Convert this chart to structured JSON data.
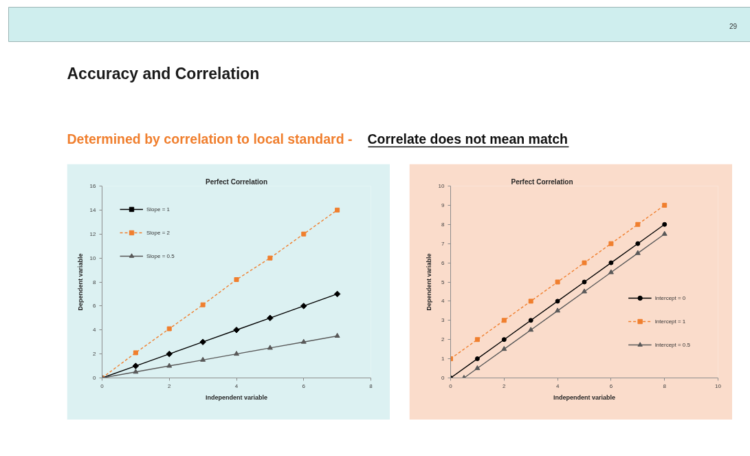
{
  "chart_data": [
    {
      "type": "other",
      "title": "Accuracy and Correlation",
      "subtitle": "Determined by correlation to local standard -",
      "annotations": [
        "Correlate does not mean match",
        "29"
      ]
    },
    {
      "type": "line",
      "title": "Perfect Correlation",
      "xlabel": "Independent variable",
      "ylabel": "Dependent variable",
      "x": [
        0,
        1,
        2,
        3,
        4,
        5,
        6,
        7
      ],
      "xlim": [
        0,
        8
      ],
      "xticks": [
        0,
        2,
        4,
        6,
        8
      ],
      "ylim": [
        0,
        16
      ],
      "yticks": [
        0,
        2,
        4,
        6,
        8,
        10,
        12,
        14,
        16
      ],
      "grid": false,
      "legend": "top left",
      "series": [
        {
          "name": "Slope = 1",
          "color": "#000000",
          "values": [
            0,
            1,
            2,
            3,
            4,
            5,
            6,
            7
          ],
          "marker": "diamond",
          "line_style": "solid"
        },
        {
          "name": "Slope = 2",
          "color": "#f07f2e",
          "values": [
            0,
            2.1,
            4.1,
            6.1,
            8.2,
            10,
            12,
            14
          ],
          "marker": "square",
          "line_style": "dashed"
        },
        {
          "name": "Slope = 0.5",
          "color": "#595959",
          "values": [
            0,
            0.5,
            1,
            1.5,
            2,
            2.5,
            3,
            3.5
          ],
          "marker": "triangle",
          "line_style": "solid"
        }
      ]
    },
    {
      "type": "line",
      "title": "Perfect Correlation",
      "xlabel": "Independent variable",
      "ylabel": "Dependent variable",
      "x": [
        0,
        1,
        2,
        3,
        4,
        5,
        6,
        7,
        8
      ],
      "xlim": [
        0,
        10
      ],
      "xticks": [
        0,
        2,
        4,
        6,
        8,
        10
      ],
      "ylim": [
        0,
        10
      ],
      "yticks": [
        0,
        1,
        2,
        3,
        4,
        5,
        6,
        7,
        8,
        9,
        10
      ],
      "grid": false,
      "legend": "bottom right",
      "series": [
        {
          "name": "Intercept = 0",
          "color": "#000000",
          "values": [
            0,
            1,
            2,
            3,
            4,
            5,
            6,
            7,
            8
          ],
          "marker": "circle",
          "line_style": "solid"
        },
        {
          "name": "Intercept = 1",
          "color": "#f07f2e",
          "values": [
            1,
            2,
            3,
            4,
            5,
            6,
            7,
            8,
            9
          ],
          "marker": "square",
          "line_style": "dashed"
        },
        {
          "name": "Intercept = 0.5",
          "color": "#595959",
          "x": [
            0.5,
            1,
            2,
            3,
            4,
            5,
            6,
            7,
            8
          ],
          "values": [
            0,
            0.5,
            1.5,
            2.5,
            3.5,
            4.5,
            5.5,
            6.5,
            7.5
          ],
          "marker": "triangle",
          "line_style": "solid"
        }
      ]
    }
  ]
}
